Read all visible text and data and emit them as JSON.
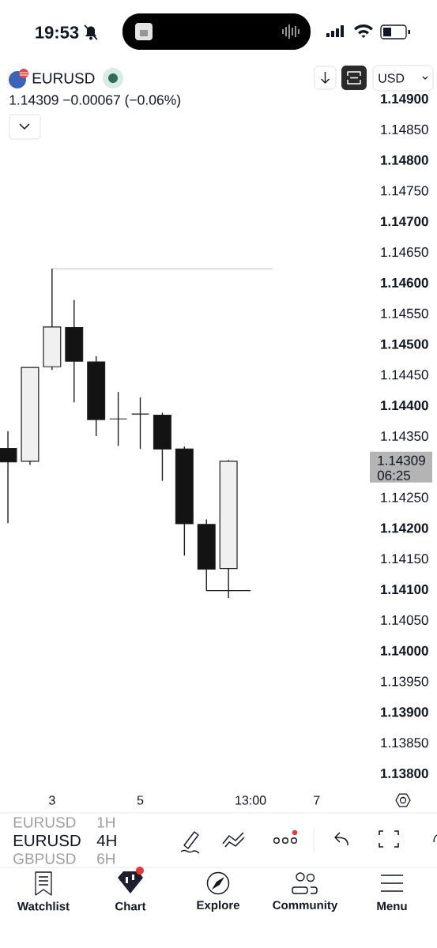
{
  "chart_data": {
    "type": "candlestick",
    "title": "EURUSD",
    "subtitle": "1.14309 −0.00067 (−0.06%)",
    "categories": [
      null,
      null,
      "3",
      null,
      null,
      null,
      "5",
      null,
      null,
      null,
      null,
      "13:00",
      null,
      null,
      "7",
      null,
      null
    ],
    "ohlc": [
      [
        1.1433,
        1.14358,
        1.14208,
        1.14308
      ],
      [
        1.14309,
        1.14462,
        1.14303,
        1.14462
      ],
      [
        1.14463,
        1.14623,
        1.14458,
        1.14528
      ],
      [
        1.14527,
        1.14572,
        1.14405,
        1.14472
      ],
      [
        1.14471,
        1.1448,
        1.1435,
        1.14377
      ],
      [
        1.14378,
        1.14422,
        1.14334,
        1.14378
      ],
      [
        1.14386,
        1.14413,
        1.14329,
        1.14386
      ],
      [
        1.14384,
        1.14388,
        1.14277,
        1.14329
      ],
      [
        1.14329,
        1.14333,
        1.14155,
        1.14207
      ],
      [
        1.14206,
        1.14214,
        1.14098,
        1.14133
      ],
      [
        1.14134,
        1.14311,
        1.14086,
        1.14309
      ],
      null,
      null,
      null,
      null,
      null,
      null
    ],
    "colors": [
      "#131313",
      "#f0f0f0",
      "#f0f0f0",
      "#131313",
      "#131313",
      "#131313",
      "#131313",
      "#131313",
      "#131313",
      "#131313",
      "#f0f0f0",
      null,
      null,
      null,
      null,
      null,
      null
    ],
    "color": "#1e1e1e",
    "series": [
      {
        "type": "line",
        "values": [
          null,
          null,
          1.14623,
          1.14623,
          1.14623,
          1.14623,
          1.14623,
          1.14623,
          1.14623,
          1.14623,
          1.14623,
          1.14623,
          1.14623,
          null,
          null,
          null,
          null
        ],
        "color": "#cccccc"
      },
      {
        "type": "line",
        "values": [
          null,
          null,
          null,
          null,
          null,
          null,
          null,
          null,
          null,
          1.14098,
          1.14098,
          1.14098,
          null,
          null,
          null,
          null,
          null
        ],
        "color": "#1a1a1a"
      }
    ],
    "ylim": [
      1.138,
      1.149
    ],
    "yticks": [
      {
        "value": 1.138,
        "label": "1.13800"
      },
      {
        "value": 1.1385,
        "label": "1.13850"
      },
      {
        "value": 1.139,
        "label": "1.13900"
      },
      {
        "value": 1.1395,
        "label": "1.13950"
      },
      {
        "value": 1.14,
        "label": "1.14000"
      },
      {
        "value": 1.1405,
        "label": "1.14050"
      },
      {
        "value": 1.141,
        "label": "1.14100"
      },
      {
        "value": 1.1415,
        "label": "1.14150"
      },
      {
        "value": 1.142,
        "label": "1.14200"
      },
      {
        "value": 1.1425,
        "label": "1.14250"
      },
      {
        "value": 1.1435,
        "label": "1.14350"
      },
      {
        "value": 1.144,
        "label": "1.14400"
      },
      {
        "value": 1.1445,
        "label": "1.14450"
      },
      {
        "value": 1.145,
        "label": "1.14500"
      },
      {
        "value": 1.1455,
        "label": "1.14550"
      },
      {
        "value": 1.146,
        "label": "1.14600"
      },
      {
        "value": 1.1465,
        "label": "1.14650"
      },
      {
        "value": 1.147,
        "label": "1.14700"
      },
      {
        "value": 1.1475,
        "label": "1.14750"
      },
      {
        "value": 1.148,
        "label": "1.14800"
      },
      {
        "value": 1.1485,
        "label": "1.14850"
      },
      {
        "value": 1.149,
        "label": "1.14900"
      }
    ],
    "annotations": [
      "19:53",
      "USD",
      "1.14309",
      "06:25",
      "EURUSD",
      "1H",
      "EURUSD",
      "4H",
      "GBPUSD",
      "6H",
      "Watchlist",
      "Chart",
      "Explore",
      "Community",
      "Menu"
    ]
  }
}
